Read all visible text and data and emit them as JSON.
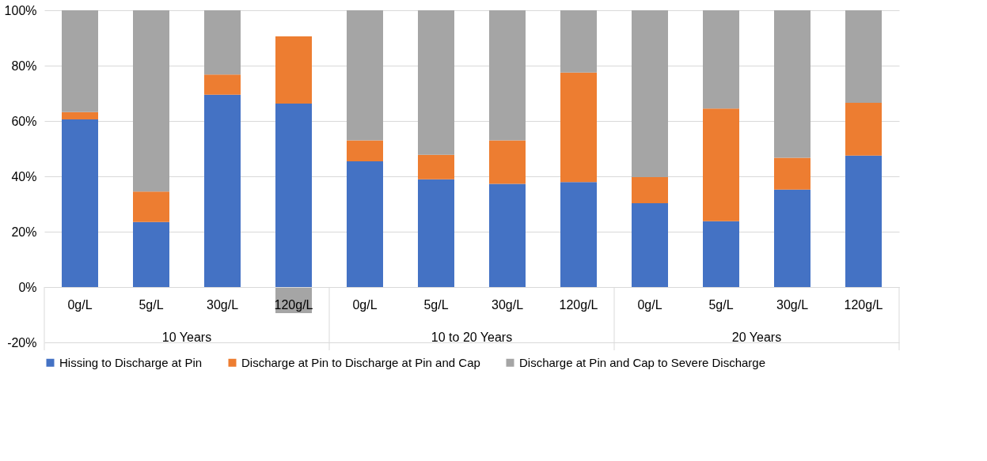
{
  "chart_data": {
    "type": "bar",
    "stacked": true,
    "categories": [
      "0g/L",
      "5g/L",
      "30g/L",
      "120g/L",
      "0g/L",
      "5g/L",
      "30g/L",
      "120g/L",
      "0g/L",
      "5g/L",
      "30g/L",
      "120g/L"
    ],
    "annotations": [
      "10 Years",
      "10 to 20 Years",
      "20 Years"
    ],
    "series": [
      {
        "name": "Hissing to Discharge at Pin",
        "color": "#4472c4",
        "values": [
          60.6,
          23.5,
          69.5,
          66.3,
          45.4,
          38.9,
          37.3,
          37.9,
          30.3,
          23.8,
          35.2,
          47.5
        ]
      },
      {
        "name": "Discharge at Pin to Discharge at Pin and Cap",
        "color": "#ed7d31",
        "values": [
          2.6,
          11.0,
          7.3,
          24.3,
          7.6,
          8.9,
          15.7,
          39.6,
          9.4,
          40.7,
          11.5,
          19.1
        ]
      },
      {
        "name": "Discharge at Pin and Cap to Severe Discharge",
        "color": "#a5a5a5",
        "values": [
          36.8,
          65.5,
          23.2,
          -9.4,
          47.0,
          52.2,
          47.0,
          22.5,
          60.3,
          35.5,
          53.3,
          33.4
        ]
      }
    ],
    "ylim": [
      -20,
      100
    ],
    "yticks": [
      {
        "value": -20,
        "label": "-20%"
      },
      {
        "value": 0,
        "label": "0%"
      },
      {
        "value": 20,
        "label": "20%"
      },
      {
        "value": 40,
        "label": "40%"
      },
      {
        "value": 60,
        "label": "60%"
      },
      {
        "value": 80,
        "label": "80%"
      },
      {
        "value": 100,
        "label": "100%"
      }
    ],
    "grid": "y",
    "legend": "bottom"
  }
}
